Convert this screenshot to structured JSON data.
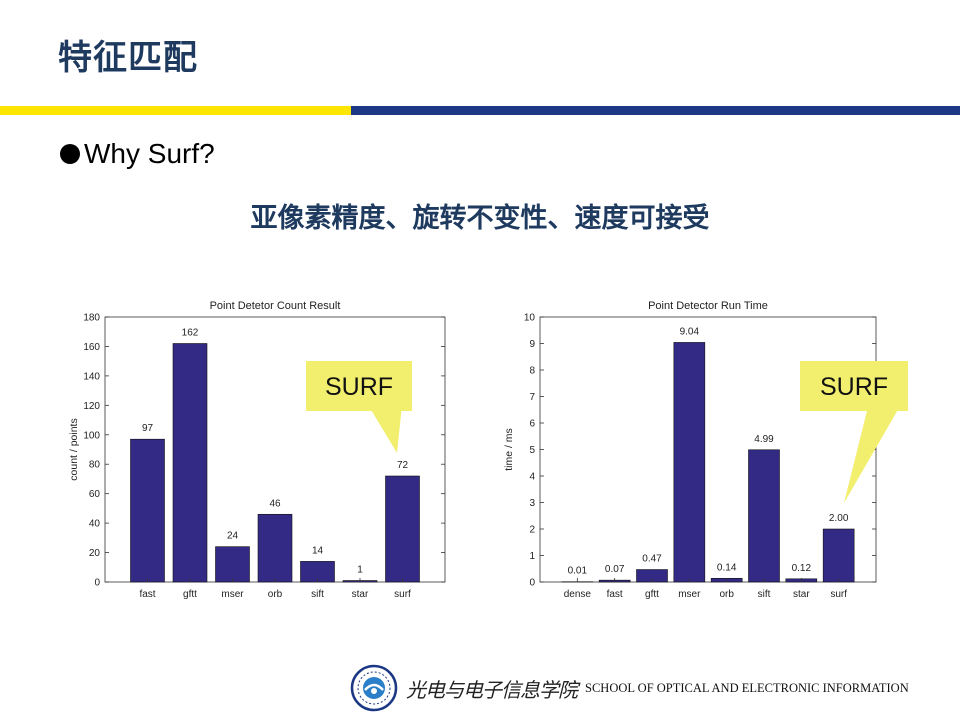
{
  "slide": {
    "title": "特征匹配",
    "bullet": "Why Surf?",
    "subtitle": "亚像素精度、旋转不变性、速度可接受",
    "accent_yellow": "#ffe600",
    "accent_navy": "#1c3784",
    "title_color": "#1f3a5f"
  },
  "footer": {
    "school_cn": "光电与电子信息学院",
    "school_en": "SCHOOL OF OPTICAL AND ELECTRONIC INFORMATION",
    "logo_icon": "university-seal-icon"
  },
  "chart_data": [
    {
      "type": "bar",
      "title": "Point Detetor Count Result",
      "xlabel": "",
      "ylabel": "count / points",
      "categories": [
        "fast",
        "gftt",
        "mser",
        "orb",
        "sift",
        "star",
        "surf"
      ],
      "values": [
        97,
        162,
        24,
        46,
        14,
        1,
        72
      ],
      "value_labels": [
        "97",
        "162",
        "24",
        "46",
        "14",
        "1",
        "72"
      ],
      "ylim": [
        0,
        180
      ],
      "yticks": [
        0,
        20,
        40,
        60,
        80,
        100,
        120,
        140,
        160,
        180
      ],
      "bar_color": "#332a86",
      "callout": {
        "text": "SURF",
        "target": "surf",
        "color": "#f2ef6e"
      }
    },
    {
      "type": "bar",
      "title": "Point Detector Run Time",
      "xlabel": "",
      "ylabel": "time / ms",
      "categories": [
        "dense",
        "fast",
        "gftt",
        "mser",
        "orb",
        "sift",
        "star",
        "surf"
      ],
      "values": [
        0.01,
        0.07,
        0.47,
        9.04,
        0.14,
        4.99,
        0.12,
        2.0
      ],
      "value_labels": [
        "0.01",
        "0.07",
        "0.47",
        "9.04",
        "0.14",
        "4.99",
        "0.12",
        "2.00"
      ],
      "ylim": [
        0,
        10
      ],
      "yticks": [
        0,
        1,
        2,
        3,
        4,
        5,
        6,
        7,
        8,
        9,
        10
      ],
      "bar_color": "#332a86",
      "callout": {
        "text": "SURF",
        "target": "surf",
        "color": "#f2ef6e"
      }
    }
  ]
}
